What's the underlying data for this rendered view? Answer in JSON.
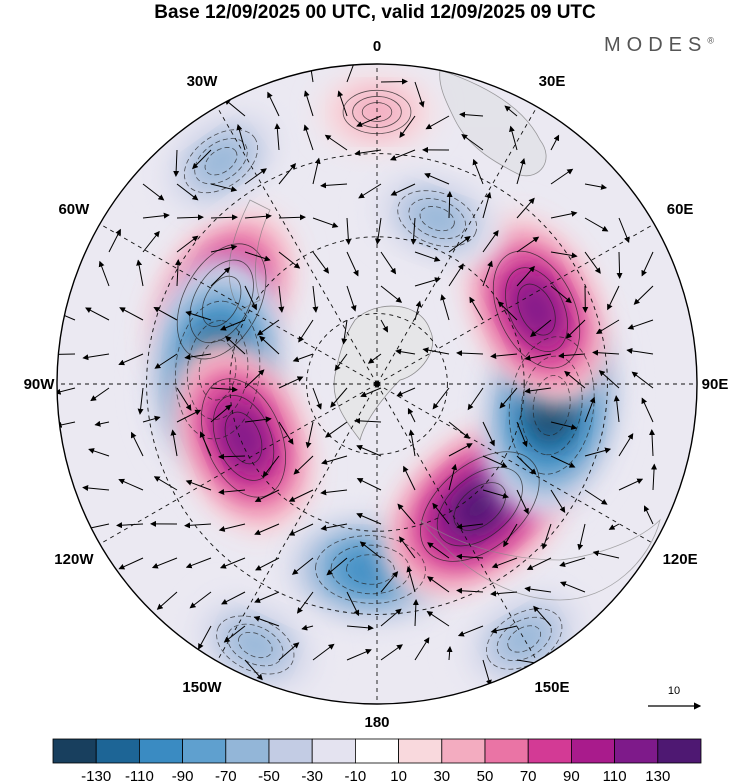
{
  "header": {
    "title": "Base 12/09/2025 00 UTC, valid 12/09/2025 09 UTC",
    "brand": "MODES",
    "brand_mark": "®"
  },
  "map": {
    "projection": "polar stereographic (south pole)",
    "longitude_labels": [
      "0",
      "30E",
      "60E",
      "90E",
      "120E",
      "150E",
      "180",
      "150W",
      "120W",
      "90W",
      "60W",
      "30W"
    ],
    "reference_vector_label": "10",
    "field": "anomaly with wind vectors",
    "anomaly_centers": [
      {
        "sign": "positive",
        "value": 110,
        "lon": -62,
        "colat": 0.55
      },
      {
        "sign": "negative",
        "value": -130,
        "lon": -85,
        "colat": 0.5
      },
      {
        "sign": "positive",
        "value": 110,
        "lon": -112,
        "colat": 0.45
      },
      {
        "sign": "negative",
        "value": -90,
        "lon": -178,
        "colat": 0.58
      },
      {
        "sign": "positive",
        "value": 130,
        "lon": 140,
        "colat": 0.5
      },
      {
        "sign": "negative",
        "value": -130,
        "lon": 97,
        "colat": 0.55
      },
      {
        "sign": "positive",
        "value": 110,
        "lon": 65,
        "colat": 0.55
      },
      {
        "sign": "negative",
        "value": -50,
        "lon": 20,
        "colat": 0.55
      },
      {
        "sign": "positive",
        "value": 30,
        "lon": 0,
        "colat": 0.85
      },
      {
        "sign": "negative",
        "value": -50,
        "lon": -35,
        "colat": 0.85
      },
      {
        "sign": "negative",
        "value": -50,
        "lon": -155,
        "colat": 0.9
      },
      {
        "sign": "negative",
        "value": -50,
        "lon": 150,
        "colat": 0.92
      }
    ]
  },
  "colorbar": {
    "labels": [
      "-130",
      "-110",
      "-90",
      "-70",
      "-50",
      "-30",
      "-10",
      "10",
      "30",
      "50",
      "70",
      "90",
      "110",
      "130"
    ],
    "colors": [
      "#183f5e",
      "#1d6596",
      "#3a8bc2",
      "#5fa0cf",
      "#93b6d8",
      "#c3cce4",
      "#e4e3f0",
      "#ffffff",
      "#f9d9dd",
      "#f3acc0",
      "#ea74a5",
      "#d33a95",
      "#a91b8c",
      "#7e1a8a",
      "#4e1872"
    ]
  }
}
